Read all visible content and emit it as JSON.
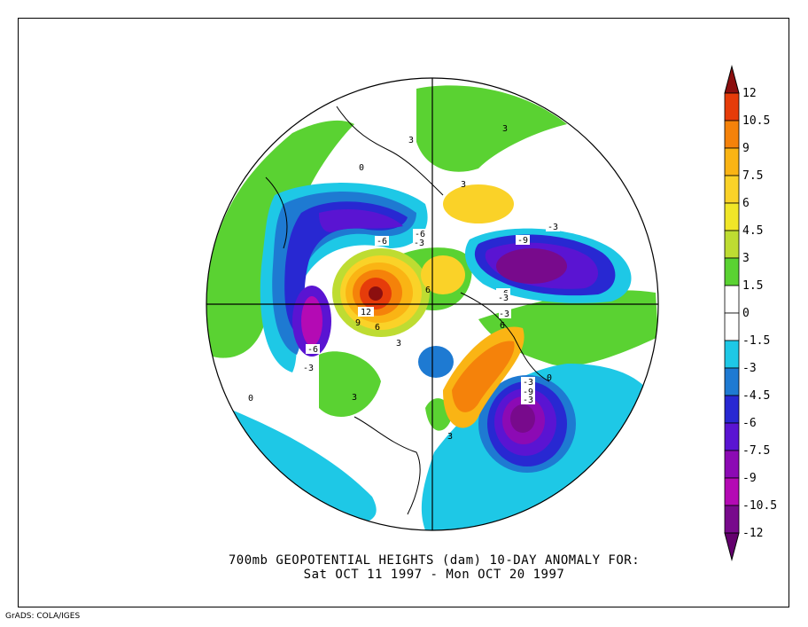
{
  "caption": {
    "line1": "700mb GEOPOTENTIAL HEIGHTS (dam)    10-DAY ANOMALY FOR:",
    "line2": "Sat OCT 11 1997 - Mon OCT 20 1997"
  },
  "credit": "GrADS: COLA/IGES",
  "colorbar": {
    "levels": [
      {
        "label": "12",
        "color": "#8c0f0f"
      },
      {
        "label": "10.5",
        "color": "#e63c0a"
      },
      {
        "label": "9",
        "color": "#f5820a"
      },
      {
        "label": "7.5",
        "color": "#fab414"
      },
      {
        "label": "6",
        "color": "#fad228"
      },
      {
        "label": "4.5",
        "color": "#f0e628"
      },
      {
        "label": "3",
        "color": "#bedc32"
      },
      {
        "label": "1.5",
        "color": "#5ad232"
      },
      {
        "label": "0",
        "color": "#ffffff"
      },
      {
        "label": "-1.5",
        "color": "#ffffff"
      },
      {
        "label": "-3",
        "color": "#1ec8e6"
      },
      {
        "label": "-4.5",
        "color": "#1e7ad2"
      },
      {
        "label": "-6",
        "color": "#2828d2"
      },
      {
        "label": "-7.5",
        "color": "#5a14d2"
      },
      {
        "label": "-9",
        "color": "#8c0ab4"
      },
      {
        "label": "-10.5",
        "color": "#b40ab4"
      },
      {
        "label": "-12",
        "color": "#780a8c"
      }
    ],
    "bottom_color": "#64006e"
  },
  "contour_labels": [
    "-9",
    "-6",
    "-3",
    "-6",
    "12",
    "9",
    "6",
    "3",
    "-3",
    "-6",
    "-3",
    "6",
    "3",
    "-6",
    "3",
    "0",
    "-3",
    "3",
    "-3",
    "6",
    "-9",
    "3",
    "-3",
    "0",
    "3",
    "-3",
    "0"
  ]
}
